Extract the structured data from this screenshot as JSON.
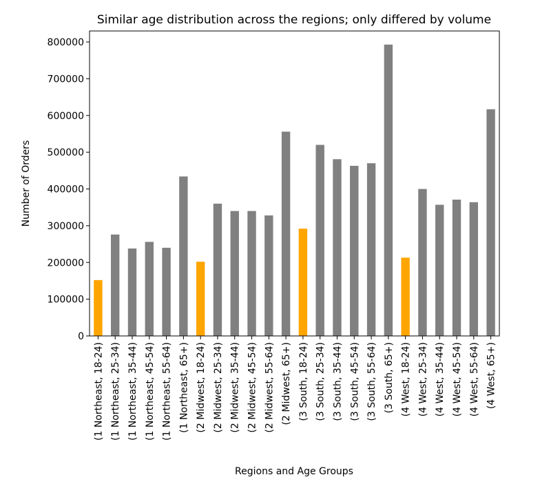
{
  "chart_data": {
    "type": "bar",
    "title": "Similar age distribution across the regions; only differed by volume",
    "xlabel": "Regions and Age Groups",
    "ylabel": "Number of Orders",
    "ylim": [
      0,
      830000
    ],
    "yticks": [
      0,
      100000,
      200000,
      300000,
      400000,
      500000,
      600000,
      700000,
      800000
    ],
    "grid": false,
    "colors": {
      "highlight": "#FFA500",
      "default": "#808080"
    },
    "categories": [
      "(1 Northeast, 18-24)",
      "(1 Northeast, 25-34)",
      "(1 Northeast, 35-44)",
      "(1 Northeast, 45-54)",
      "(1 Northeast, 55-64)",
      "(1 Northeast, 65+)",
      "(2 Midwest, 18-24)",
      "(2 Midwest, 25-34)",
      "(2 Midwest, 35-44)",
      "(2 Midwest, 45-54)",
      "(2 Midwest, 55-64)",
      "(2 Midwest, 65+)",
      "(3 South, 18-24)",
      "(3 South, 25-34)",
      "(3 South, 35-44)",
      "(3 South, 45-54)",
      "(3 South, 55-64)",
      "(3 South, 65+)",
      "(4 West, 18-24)",
      "(4 West, 25-34)",
      "(4 West, 35-44)",
      "(4 West, 45-54)",
      "(4 West, 55-64)",
      "(4 West, 65+)"
    ],
    "values": [
      152000,
      276000,
      238000,
      256000,
      240000,
      434000,
      202000,
      360000,
      340000,
      340000,
      328000,
      556000,
      292000,
      520000,
      481000,
      463000,
      470000,
      793000,
      213000,
      400000,
      357000,
      371000,
      364000,
      617000
    ],
    "highlighted": [
      true,
      false,
      false,
      false,
      false,
      false,
      true,
      false,
      false,
      false,
      false,
      false,
      true,
      false,
      false,
      false,
      false,
      false,
      true,
      false,
      false,
      false,
      false,
      false
    ]
  }
}
